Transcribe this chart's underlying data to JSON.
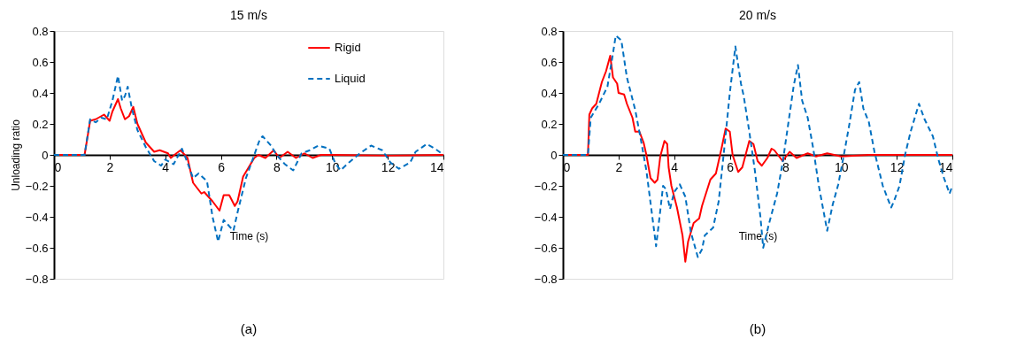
{
  "chart_data": [
    {
      "type": "line",
      "title": "15 m/s",
      "xlabel": "Time (s)",
      "ylabel": "Unloading ratio",
      "xlim": [
        0,
        14
      ],
      "xticks": [
        0,
        2,
        4,
        6,
        8,
        10,
        12,
        14
      ],
      "ylim": [
        -0.8,
        0.8
      ],
      "yticks": [
        -0.8,
        -0.6,
        -0.4,
        -0.2,
        0,
        0.2,
        0.4,
        0.6,
        0.8
      ],
      "grid": false,
      "legend": "top right",
      "annotations": [
        "(a)"
      ],
      "series": [
        {
          "name": "Rigid",
          "color": "#ff0000",
          "line_style": "solid",
          "x": [
            0,
            1.1,
            1.3,
            1.5,
            1.7,
            1.8,
            2.0,
            2.1,
            2.3,
            2.4,
            2.55,
            2.7,
            2.85,
            3.0,
            3.3,
            3.6,
            3.8,
            4.1,
            4.2,
            4.4,
            4.55,
            4.8,
            5.0,
            5.3,
            5.4,
            5.7,
            5.95,
            6.1,
            6.3,
            6.5,
            6.6,
            6.8,
            7.0,
            7.2,
            7.35,
            7.6,
            7.9,
            8.1,
            8.4,
            8.7,
            9.0,
            9.3,
            9.6,
            10,
            12,
            14
          ],
          "values": [
            0,
            0,
            0.22,
            0.23,
            0.25,
            0.26,
            0.22,
            0.28,
            0.36,
            0.3,
            0.23,
            0.25,
            0.31,
            0.2,
            0.08,
            0.02,
            0.03,
            0.01,
            -0.02,
            0.01,
            0.03,
            -0.02,
            -0.18,
            -0.25,
            -0.24,
            -0.3,
            -0.36,
            -0.26,
            -0.26,
            -0.33,
            -0.3,
            -0.14,
            -0.08,
            -0.02,
            0.0,
            -0.02,
            0.03,
            -0.02,
            0.02,
            -0.02,
            0.01,
            -0.02,
            0.0,
            0.0,
            -0.005,
            0
          ]
        },
        {
          "name": "Liquid",
          "color": "#0070c0",
          "line_style": "dashed",
          "x": [
            0,
            1.1,
            1.3,
            1.5,
            1.7,
            1.9,
            2.1,
            2.3,
            2.45,
            2.55,
            2.65,
            2.8,
            3.0,
            3.3,
            3.6,
            3.85,
            4.0,
            4.3,
            4.6,
            4.8,
            5.0,
            5.2,
            5.5,
            5.7,
            5.9,
            6.1,
            6.25,
            6.45,
            6.6,
            6.9,
            7.2,
            7.4,
            7.5,
            7.8,
            8.0,
            8.3,
            8.6,
            8.9,
            9.2,
            9.5,
            9.9,
            10.1,
            10.3,
            10.6,
            11.0,
            11.4,
            11.8,
            12.1,
            12.4,
            12.8,
            13.0,
            13.4,
            13.7,
            14
          ],
          "values": [
            0,
            0,
            0.23,
            0.21,
            0.24,
            0.23,
            0.35,
            0.51,
            0.35,
            0.38,
            0.44,
            0.3,
            0.16,
            0.05,
            -0.04,
            -0.07,
            -0.03,
            -0.06,
            0.04,
            -0.05,
            -0.15,
            -0.12,
            -0.17,
            -0.4,
            -0.56,
            -0.42,
            -0.45,
            -0.49,
            -0.37,
            -0.15,
            0.0,
            0.1,
            0.12,
            0.06,
            0.0,
            -0.06,
            -0.1,
            0.01,
            0.03,
            0.06,
            0.04,
            -0.05,
            -0.1,
            -0.05,
            0.01,
            0.06,
            0.03,
            -0.05,
            -0.09,
            -0.05,
            0.02,
            0.07,
            0.04,
            0.0
          ]
        }
      ]
    },
    {
      "type": "line",
      "title": "20 m/s",
      "xlabel": "Time (s)",
      "xlim": [
        0,
        14
      ],
      "xticks": [
        0,
        2,
        4,
        6,
        8,
        10,
        12,
        14
      ],
      "ylim": [
        -0.8,
        0.8
      ],
      "yticks": [
        -0.8,
        -0.6,
        -0.4,
        -0.2,
        0,
        0.2,
        0.4,
        0.6,
        0.8
      ],
      "grid": false,
      "annotations": [
        "(b)"
      ],
      "series": [
        {
          "color": "#ff0000",
          "line_style": "solid",
          "x": [
            0,
            0.9,
            0.95,
            1.05,
            1.2,
            1.4,
            1.55,
            1.7,
            1.8,
            1.95,
            2.0,
            2.2,
            2.3,
            2.5,
            2.6,
            2.75,
            2.9,
            3.0,
            3.15,
            3.3,
            3.4,
            3.5,
            3.65,
            3.75,
            3.8,
            3.9,
            4.1,
            4.3,
            4.4,
            4.5,
            4.7,
            4.9,
            5.0,
            5.3,
            5.5,
            5.7,
            5.85,
            6.0,
            6.1,
            6.3,
            6.45,
            6.7,
            6.85,
            7.0,
            7.15,
            7.35,
            7.5,
            7.6,
            7.9,
            8.15,
            8.4,
            8.8,
            9.1,
            9.5,
            10,
            11,
            14
          ],
          "values": [
            0,
            0,
            0.26,
            0.3,
            0.33,
            0.47,
            0.54,
            0.64,
            0.5,
            0.46,
            0.4,
            0.39,
            0.33,
            0.24,
            0.15,
            0.15,
            0.08,
            0.0,
            -0.15,
            -0.18,
            -0.16,
            -0.01,
            0.09,
            0.07,
            -0.08,
            -0.2,
            -0.34,
            -0.52,
            -0.69,
            -0.56,
            -0.44,
            -0.41,
            -0.33,
            -0.16,
            -0.12,
            0.04,
            0.17,
            0.15,
            0.0,
            -0.11,
            -0.08,
            0.09,
            0.07,
            -0.04,
            -0.07,
            -0.02,
            0.04,
            0.03,
            -0.04,
            0.02,
            -0.02,
            0.01,
            -0.01,
            0.01,
            -0.01,
            0.0,
            0.0
          ]
        },
        {
          "color": "#0070c0",
          "line_style": "dashed",
          "x": [
            0,
            0.9,
            1.0,
            1.3,
            1.6,
            1.75,
            1.9,
            2.1,
            2.3,
            2.6,
            2.8,
            3.0,
            3.2,
            3.35,
            3.5,
            3.6,
            3.7,
            3.85,
            4.0,
            4.2,
            4.4,
            4.6,
            4.85,
            5.0,
            5.1,
            5.4,
            5.6,
            5.8,
            6.0,
            6.2,
            6.4,
            6.5,
            6.7,
            6.9,
            7.1,
            7.2,
            7.4,
            7.7,
            7.9,
            8.1,
            8.3,
            8.45,
            8.6,
            8.8,
            9.0,
            9.2,
            9.5,
            9.7,
            9.9,
            10.1,
            10.3,
            10.5,
            10.65,
            10.8,
            11.0,
            11.2,
            11.5,
            11.8,
            11.9,
            12.1,
            12.3,
            12.5,
            12.8,
            13.0,
            13.3,
            13.5,
            13.7,
            13.9,
            14.0
          ],
          "values": [
            0,
            0,
            0.24,
            0.33,
            0.44,
            0.6,
            0.77,
            0.74,
            0.5,
            0.29,
            0.1,
            -0.1,
            -0.38,
            -0.59,
            -0.36,
            -0.2,
            -0.22,
            -0.35,
            -0.24,
            -0.19,
            -0.27,
            -0.5,
            -0.66,
            -0.61,
            -0.52,
            -0.47,
            -0.3,
            0.04,
            0.4,
            0.7,
            0.46,
            0.38,
            0.15,
            -0.1,
            -0.4,
            -0.6,
            -0.45,
            -0.25,
            -0.05,
            0.2,
            0.45,
            0.58,
            0.35,
            0.24,
            0.04,
            -0.2,
            -0.49,
            -0.32,
            -0.19,
            0.0,
            0.2,
            0.42,
            0.47,
            0.3,
            0.21,
            0.02,
            -0.2,
            -0.34,
            -0.3,
            -0.2,
            0.0,
            0.15,
            0.33,
            0.23,
            0.12,
            -0.03,
            -0.15,
            -0.25,
            -0.2
          ]
        }
      ]
    }
  ]
}
